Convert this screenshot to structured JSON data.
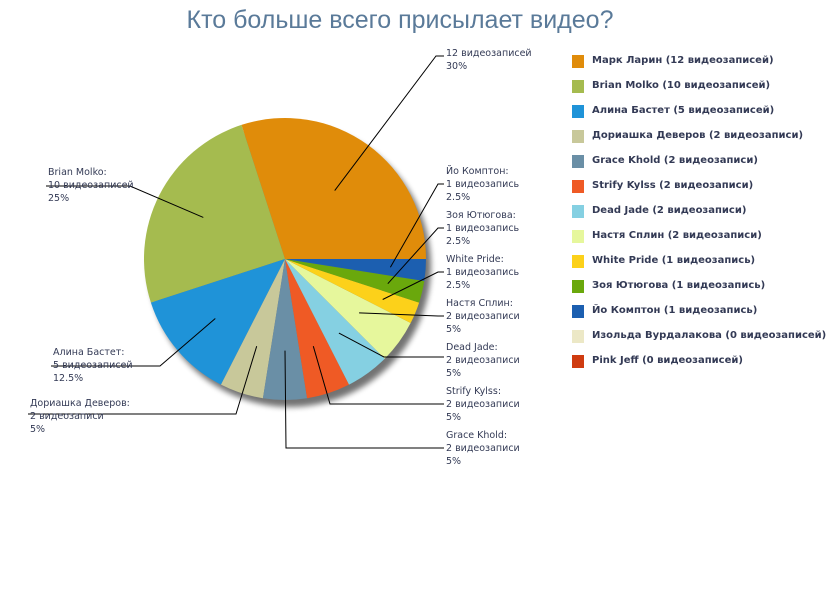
{
  "chart_data": {
    "type": "pie",
    "title": "Кто больше всего присылает видео?",
    "slices": [
      {
        "name": "Марк Ларин",
        "value": 12,
        "percent": "30%",
        "color": "#e08c0a",
        "legend": "Марк Ларин (12 видеозаписей)",
        "callout": [
          "12 видеозаписей",
          "30%"
        ]
      },
      {
        "name": "Brian Molko",
        "value": 10,
        "percent": "25%",
        "color": "#a5bb4f",
        "legend": "Brian Molko (10 видеозаписей)",
        "callout": [
          "Brian Molko:",
          "10 видеозаписей",
          "25%"
        ]
      },
      {
        "name": "Алина Бастет",
        "value": 5,
        "percent": "12.5%",
        "color": "#1f93d8",
        "legend": "Алина Бастет (5 видеозаписей)",
        "callout": [
          "Алина Бастет:",
          "5 видеозаписей",
          "12.5%"
        ]
      },
      {
        "name": "Дориашка Деверов",
        "value": 2,
        "percent": "5%",
        "color": "#c8c89a",
        "legend": "Дориашка Деверов (2 видеозаписи)",
        "callout": [
          "Дориашка Деверов:",
          "2 видеозаписи",
          "5%"
        ]
      },
      {
        "name": "Grace Khold",
        "value": 2,
        "percent": "5%",
        "color": "#6a8fa6",
        "legend": "Grace Khold (2 видеозаписи)",
        "callout": [
          "Grace Khold:",
          "2 видеозаписи",
          "5%"
        ]
      },
      {
        "name": "Strify Kylss",
        "value": 2,
        "percent": "5%",
        "color": "#ef5a25",
        "legend": "Strify Kylss (2 видеозаписи)",
        "callout": [
          "Strify Kylss:",
          "2 видеозаписи",
          "5%"
        ]
      },
      {
        "name": "Dead Jade",
        "value": 2,
        "percent": "5%",
        "color": "#85d0e2",
        "legend": "Dead Jade (2 видеозаписи)",
        "callout": [
          "Dead Jade:",
          "2 видеозаписи",
          "5%"
        ]
      },
      {
        "name": "Настя Сплин",
        "value": 2,
        "percent": "5%",
        "color": "#e6f79c",
        "legend": "Настя Сплин (2 видеозаписи)",
        "callout": [
          "Настя Сплин:",
          "2 видеозаписи",
          "5%"
        ]
      },
      {
        "name": "White Pride",
        "value": 1,
        "percent": "2.5%",
        "color": "#fcd11a",
        "legend": "White Pride (1 видеозапись)",
        "callout": [
          "White Pride:",
          "1 видеозапись",
          "2.5%"
        ]
      },
      {
        "name": "Зоя Ютюгова",
        "value": 1,
        "percent": "2.5%",
        "color": "#6aa80c",
        "legend": "Зоя Ютюгова (1 видеозапись)",
        "callout": [
          "Зоя Ютюгова:",
          "1 видеозапись",
          "2.5%"
        ]
      },
      {
        "name": "Йо Комптон",
        "value": 1,
        "percent": "2.5%",
        "color": "#1c5fb0",
        "legend": "Йо Комптон (1 видеозапись)",
        "callout": [
          "Йо Комптон:",
          "1 видеозапись",
          "2.5%"
        ]
      },
      {
        "name": "Изольда Вурдалакова",
        "value": 0,
        "percent": "",
        "color": "#ece8c6",
        "legend": "Изольда Вурдалакова (0 видеозаписей)",
        "callout": []
      },
      {
        "name": "Pink Jeff",
        "value": 0,
        "percent": "",
        "color": "#cf3b10",
        "legend": "Pink Jeff (0 видеозаписей)",
        "callout": []
      }
    ],
    "legend_position": "right"
  }
}
